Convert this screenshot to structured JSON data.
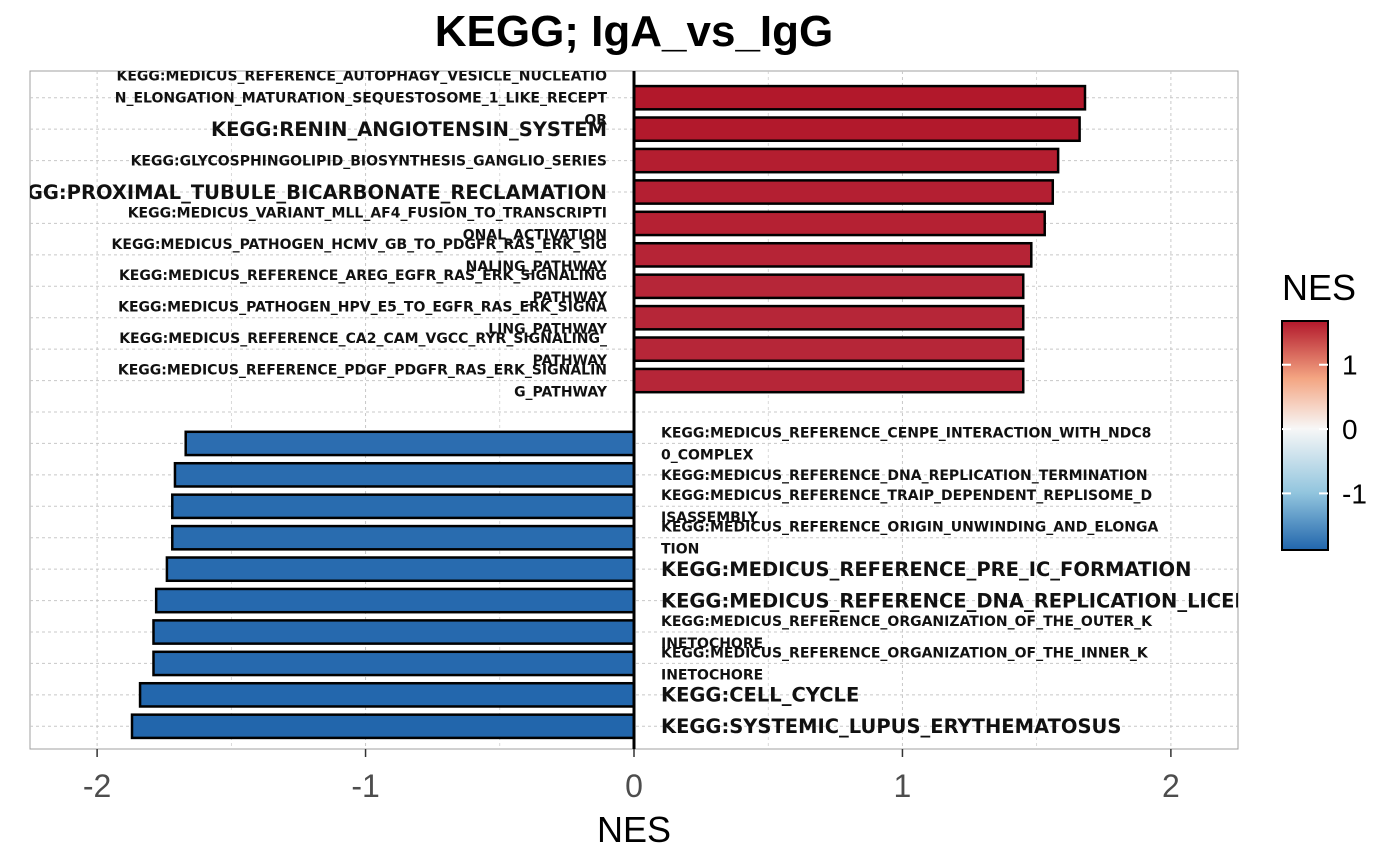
{
  "chart_data": {
    "type": "bar",
    "orientation": "horizontal",
    "title": "KEGG; IgA_vs_IgG",
    "xlabel": "NES",
    "ylabel": "",
    "xlim": [
      -2.25,
      2.25
    ],
    "x_ticks": [
      -2,
      -1,
      0,
      1,
      2
    ],
    "x_tick_labels": [
      "-2",
      "-1",
      "0",
      "1",
      "2"
    ],
    "grid": true,
    "legend": {
      "title": "NES",
      "type": "colorbar",
      "position": "right",
      "ticks": [
        1,
        0,
        -1
      ],
      "tick_labels": [
        "1",
        "0",
        "-1"
      ],
      "range": [
        -1.88,
        1.68
      ]
    },
    "colors": {
      "high": "#B2182B",
      "mid": "#F7F7F7",
      "low": "#2166AC"
    },
    "bars": [
      {
        "label_lines": [
          "KEGG:MEDICUS_REFERENCE_AUTOPHAGY_VESICLE_NUCLEATIO",
          "N_ELONGATION_MATURATION_SEQUESTOSOME_1_LIKE_RECEPT",
          "OR"
        ],
        "value": 1.68,
        "label_size": "small"
      },
      {
        "label_lines": [
          "KEGG:RENIN_ANGIOTENSIN_SYSTEM"
        ],
        "value": 1.66,
        "label_size": "large"
      },
      {
        "label_lines": [
          "KEGG:GLYCOSPHINGOLIPID_BIOSYNTHESIS_GANGLIO_SERIES"
        ],
        "value": 1.58,
        "label_size": "small"
      },
      {
        "label_lines": [
          "KEGG:PROXIMAL_TUBULE_BICARBONATE_RECLAMATION"
        ],
        "value": 1.56,
        "label_size": "large"
      },
      {
        "label_lines": [
          "KEGG:MEDICUS_VARIANT_MLL_AF4_FUSION_TO_TRANSCRIPTI",
          "ONAL_ACTIVATION"
        ],
        "value": 1.53,
        "label_size": "small"
      },
      {
        "label_lines": [
          "KEGG:MEDICUS_PATHOGEN_HCMV_GB_TO_PDGFR_RAS_ERK_SIG",
          "NALING_PATHWAY"
        ],
        "value": 1.48,
        "label_size": "small"
      },
      {
        "label_lines": [
          "KEGG:MEDICUS_REFERENCE_AREG_EGFR_RAS_ERK_SIGNALING",
          "_PATHWAY"
        ],
        "value": 1.45,
        "label_size": "small"
      },
      {
        "label_lines": [
          "KEGG:MEDICUS_PATHOGEN_HPV_E5_TO_EGFR_RAS_ERK_SIGNA",
          "LING_PATHWAY"
        ],
        "value": 1.45,
        "label_size": "small"
      },
      {
        "label_lines": [
          "KEGG:MEDICUS_REFERENCE_CA2_CAM_VGCC_RYR_SIGNALING_",
          "PATHWAY"
        ],
        "value": 1.45,
        "label_size": "small"
      },
      {
        "label_lines": [
          "KEGG:MEDICUS_REFERENCE_PDGF_PDGFR_RAS_ERK_SIGNALIN",
          "G_PATHWAY"
        ],
        "value": 1.45,
        "label_size": "small"
      },
      {
        "label_lines": [
          "KEGG:MEDICUS_REFERENCE_CENPE_INTERACTION_WITH_NDC8",
          "0_COMPLEX"
        ],
        "value": -1.67,
        "label_size": "small"
      },
      {
        "label_lines": [
          "KEGG:MEDICUS_REFERENCE_DNA_REPLICATION_TERMINATION"
        ],
        "value": -1.71,
        "label_size": "small"
      },
      {
        "label_lines": [
          "KEGG:MEDICUS_REFERENCE_TRAIP_DEPENDENT_REPLISOME_D",
          "ISASSEMBLY"
        ],
        "value": -1.72,
        "label_size": "small"
      },
      {
        "label_lines": [
          "KEGG:MEDICUS_REFERENCE_ORIGIN_UNWINDING_AND_ELONGA",
          "TION"
        ],
        "value": -1.72,
        "label_size": "small"
      },
      {
        "label_lines": [
          "KEGG:MEDICUS_REFERENCE_PRE_IC_FORMATION"
        ],
        "value": -1.74,
        "label_size": "large"
      },
      {
        "label_lines": [
          "KEGG:MEDICUS_REFERENCE_DNA_REPLICATION_LICENSING"
        ],
        "value": -1.78,
        "label_size": "large"
      },
      {
        "label_lines": [
          "KEGG:MEDICUS_REFERENCE_ORGANIZATION_OF_THE_OUTER_K",
          "INETOCHORE"
        ],
        "value": -1.79,
        "label_size": "small"
      },
      {
        "label_lines": [
          "KEGG:MEDICUS_REFERENCE_ORGANIZATION_OF_THE_INNER_K",
          "INETOCHORE"
        ],
        "value": -1.79,
        "label_size": "small"
      },
      {
        "label_lines": [
          "KEGG:CELL_CYCLE"
        ],
        "value": -1.84,
        "label_size": "large"
      },
      {
        "label_lines": [
          "KEGG:SYSTEMIC_LUPUS_ERYTHEMATOSUS"
        ],
        "value": -1.87,
        "label_size": "large"
      }
    ]
  }
}
